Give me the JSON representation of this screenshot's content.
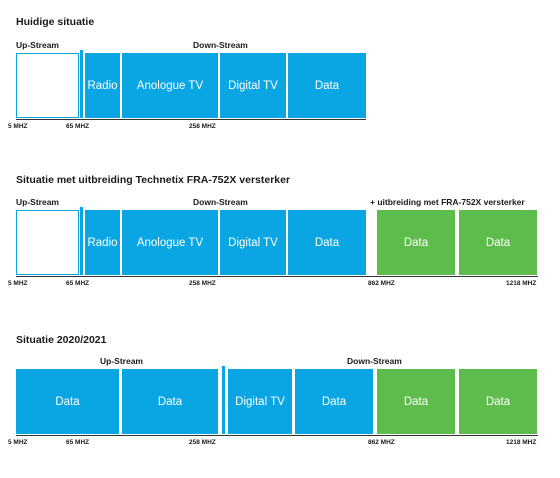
{
  "s1": {
    "title": "Huidige situatie",
    "upstream": "Up-Stream",
    "downstream": "Down-Stream",
    "blocks": [
      "Radio",
      "Anologue TV",
      "Digital TV",
      "Data"
    ],
    "ticks": [
      "5 MHZ",
      "65 MHZ",
      "258 MHZ"
    ]
  },
  "s2": {
    "title": "Situatie met uitbreiding Technetix FRA-752X versterker",
    "upstream": "Up-Stream",
    "downstream": "Down-Stream",
    "extension": "+ uitbreiding met FRA-752X versterker",
    "blocks": [
      "Radio",
      "Anologue TV",
      "Digital TV",
      "Data",
      "Data",
      "Data"
    ],
    "ticks": [
      "5 MHZ",
      "65 MHZ",
      "258 MHZ",
      "862 MHZ",
      "1218 MHZ"
    ]
  },
  "s3": {
    "title": "Situatie 2020/2021",
    "upstream": "Up-Stream",
    "downstream": "Down-Stream",
    "blocks": [
      "Data",
      "Data",
      "Digital TV",
      "Data",
      "Data",
      "Data"
    ],
    "ticks": [
      "5 MHZ",
      "65 MHZ",
      "258 MHZ",
      "862 MHZ",
      "1218 MHZ"
    ]
  },
  "colors": {
    "blue": "#0aa5e3",
    "green": "#5ebc4c",
    "axis": "#333333"
  }
}
